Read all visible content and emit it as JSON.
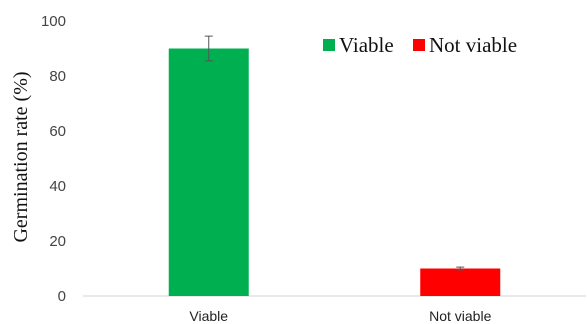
{
  "chart_data": {
    "type": "bar",
    "title": "",
    "xlabel": "",
    "ylabel": "Germination rate (%)",
    "categories": [
      "Viable",
      "Not viable"
    ],
    "series": [
      {
        "name": "Viable",
        "category": "Viable",
        "value": 90,
        "error": 4.5,
        "color": "#00b050"
      },
      {
        "name": "Not viable",
        "category": "Not viable",
        "value": 10,
        "error": 0.5,
        "color": "#ff0000"
      }
    ],
    "ylim": [
      0,
      100
    ],
    "yticks": [
      "0",
      "20",
      "40",
      "60",
      "80",
      "100"
    ],
    "ytick_values": [
      0,
      20,
      40,
      60,
      80,
      100
    ],
    "grid": false,
    "legend_position": "top-right",
    "error_bar_color": "#555555"
  }
}
